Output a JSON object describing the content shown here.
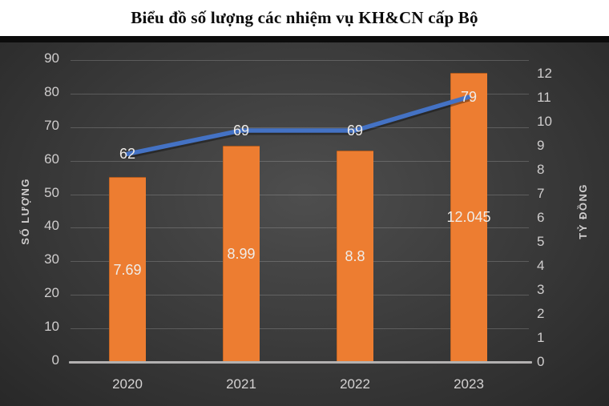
{
  "title": "Biểu đồ số lượng các nhiệm vụ KH&CN cấp Bộ",
  "chart_data": {
    "type": "combo",
    "categories": [
      "2020",
      "2021",
      "2022",
      "2023"
    ],
    "series": [
      {
        "name": "TỶ ĐỒNG",
        "type": "bar",
        "axis": "right",
        "values": [
          7.69,
          8.99,
          8.8,
          12.045
        ],
        "labels": [
          "7.69",
          "8.99",
          "8.8",
          "12.045"
        ],
        "color": "#ED7D31"
      },
      {
        "name": "SỐ LƯỢNG",
        "type": "line",
        "axis": "left",
        "values": [
          62,
          69,
          69,
          79
        ],
        "labels": [
          "62",
          "69",
          "69",
          "79"
        ],
        "color": "#4472C4"
      }
    ],
    "left_axis": {
      "title": "SỐ LƯỢNG",
      "min": 0,
      "max": 90,
      "step": 10,
      "ticks": [
        "0",
        "10",
        "20",
        "30",
        "40",
        "50",
        "60",
        "70",
        "80",
        "90"
      ]
    },
    "right_axis": {
      "title": "TỶ ĐỒNG",
      "min": 0,
      "max": 12,
      "step": 1,
      "ticks": [
        "0",
        "1",
        "2",
        "3",
        "4",
        "5",
        "6",
        "7",
        "8",
        "9",
        "10",
        "11",
        "12"
      ]
    },
    "grid": "on",
    "legend": "none",
    "colors": {
      "bar": "#ED7D31",
      "line": "#4472C4",
      "line_shadow": "rgba(0,0,0,0.35)",
      "tick_text": "#cfcdcd",
      "data_label_text": "#efece8",
      "grid_line": "rgba(255,255,255,0.18)",
      "axis_line": "#b3b1b1",
      "panel_dark": "#282828",
      "panel_light": "#4e4e4e",
      "title_text": "#0a0a0a",
      "title_bg": "#ffffff"
    }
  }
}
